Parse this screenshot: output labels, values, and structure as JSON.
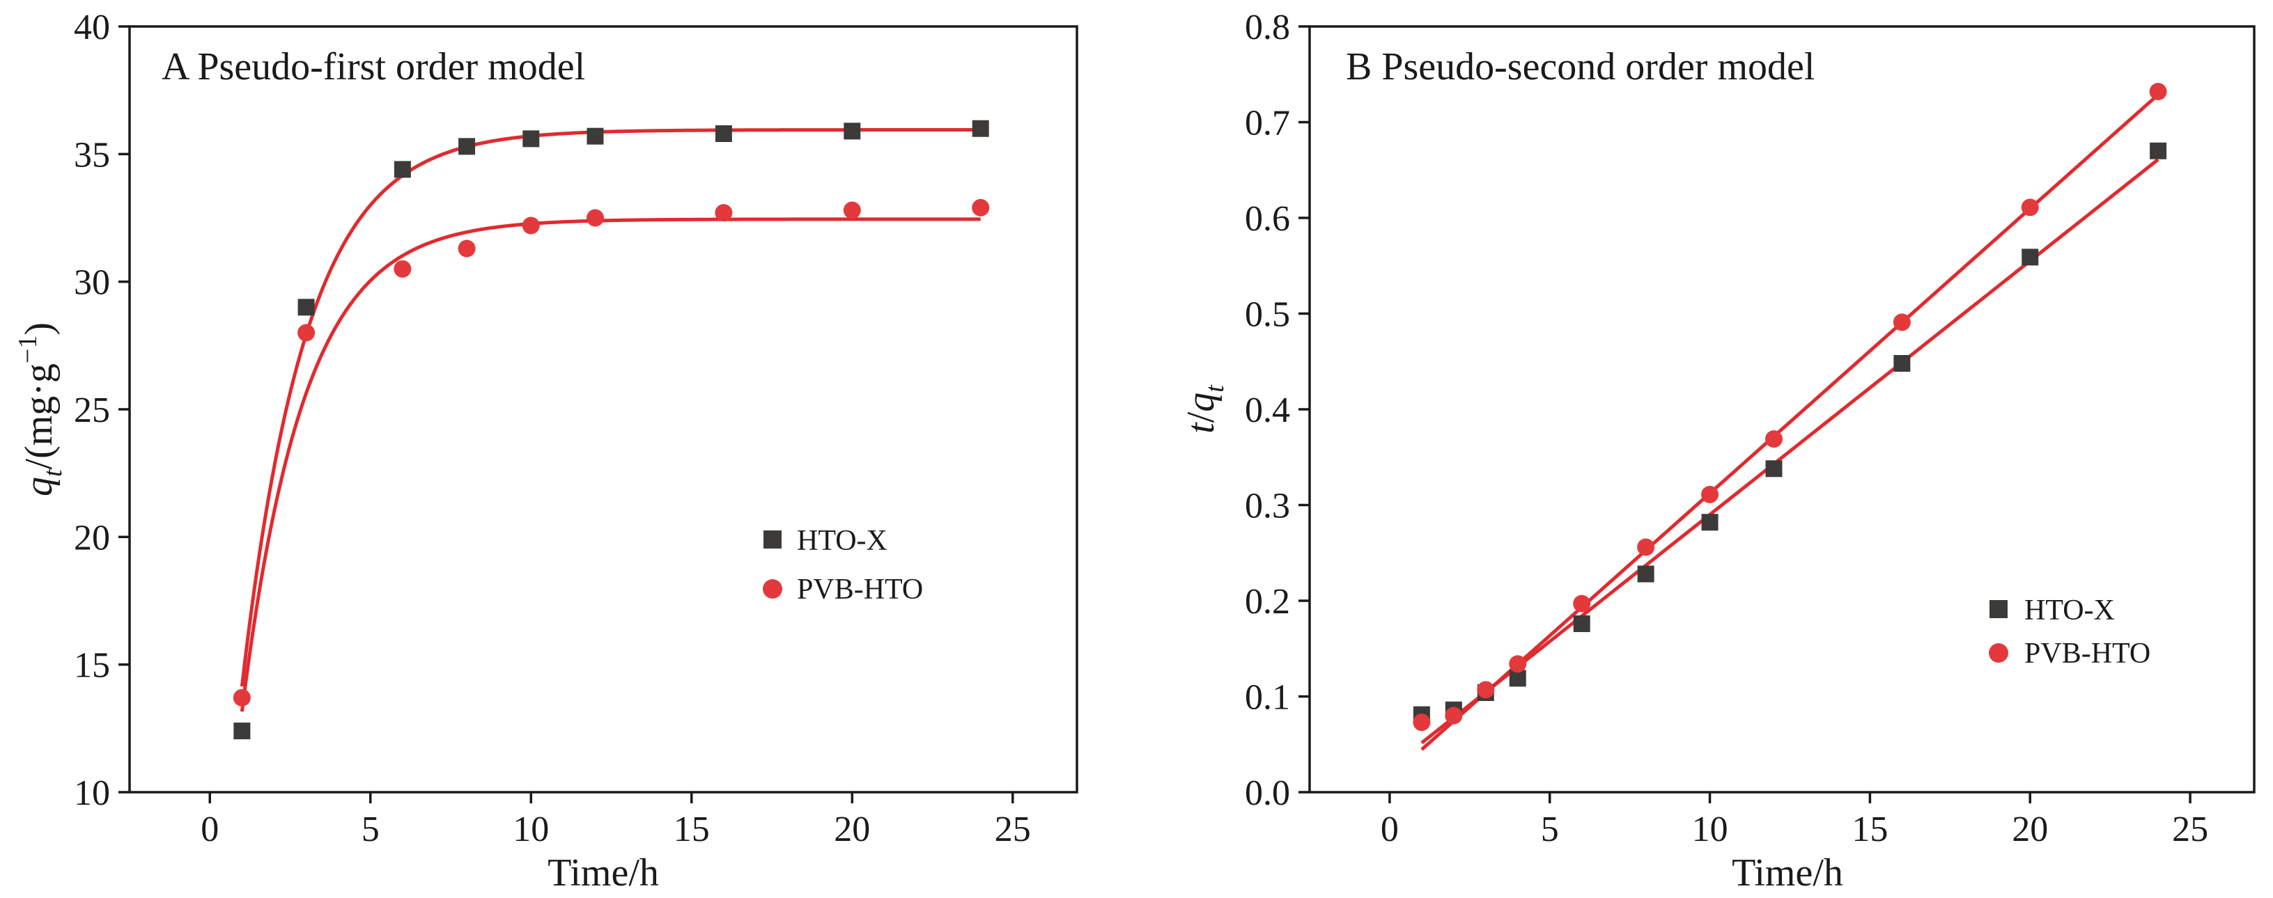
{
  "colors": {
    "square": "#3d3b39",
    "circle": "#e4393c",
    "fit": "#e02b2f",
    "frame": "#1a1a1a"
  },
  "chart_data": [
    {
      "type": "scatter",
      "title": "A Pseudo-first order model",
      "xlabel": "Time/h",
      "ylabel": {
        "q": "q",
        "sub": "t",
        "rest": "/(mg·g",
        "sup": "−1",
        "close": ")"
      },
      "xlim": [
        -2.5,
        27
      ],
      "ylim": [
        10,
        40
      ],
      "xticks": [
        0,
        5,
        10,
        15,
        20,
        25
      ],
      "yticks": [
        10,
        15,
        20,
        25,
        30,
        35,
        40
      ],
      "x_tick_labels": [
        "0",
        "5",
        "10",
        "15",
        "20",
        "25"
      ],
      "y_tick_labels": [
        "10",
        "15",
        "20",
        "25",
        "30",
        "35",
        "40"
      ],
      "legend_position": "center-right",
      "series": [
        {
          "name": "HTO-X",
          "marker": "square",
          "x": [
            1,
            3,
            6,
            8,
            10,
            12,
            16,
            20,
            24
          ],
          "y": [
            12.4,
            29.0,
            34.4,
            35.3,
            35.6,
            35.7,
            35.8,
            35.9,
            36.0
          ],
          "fit": {
            "model": "pseudo-first-order",
            "qe": 35.95,
            "k": 0.5,
            "x_range": [
              1,
              24
            ]
          }
        },
        {
          "name": "PVB-HTO",
          "marker": "circle",
          "x": [
            1,
            3,
            6,
            8,
            10,
            12,
            16,
            20,
            24
          ],
          "y": [
            13.7,
            28.0,
            30.5,
            31.3,
            32.2,
            32.5,
            32.7,
            32.8,
            32.9
          ],
          "fit": {
            "model": "pseudo-first-order",
            "qe": 32.45,
            "k": 0.52,
            "x_range": [
              1,
              24
            ]
          }
        }
      ]
    },
    {
      "type": "scatter",
      "title": "B Pseudo-second order model",
      "xlabel": "Time/h",
      "ylabel": {
        "t": "t",
        "slash": "/",
        "q": "q",
        "sub": "t"
      },
      "xlim": [
        -2.5,
        27
      ],
      "ylim": [
        0,
        0.8
      ],
      "xticks": [
        0,
        5,
        10,
        15,
        20,
        25
      ],
      "yticks": [
        0.0,
        0.1,
        0.2,
        0.3,
        0.4,
        0.5,
        0.6,
        0.7,
        0.8
      ],
      "x_tick_labels": [
        "0",
        "5",
        "10",
        "15",
        "20",
        "25"
      ],
      "y_tick_labels": [
        "0.0",
        "0.1",
        "0.2",
        "0.3",
        "0.4",
        "0.5",
        "0.6",
        "0.7",
        "0.8"
      ],
      "legend_position": "lower-right",
      "series": [
        {
          "name": "HTO-X",
          "marker": "square",
          "x": [
            1,
            2,
            3,
            4,
            6,
            8,
            10,
            12,
            16,
            20,
            24
          ],
          "y": [
            0.081,
            0.086,
            0.104,
            0.119,
            0.176,
            0.228,
            0.282,
            0.338,
            0.448,
            0.559,
            0.67
          ],
          "fit": {
            "model": "linear",
            "slope": 0.0265,
            "intercept": 0.025,
            "x_range": [
              1,
              24
            ]
          }
        },
        {
          "name": "PVB-HTO",
          "marker": "circle",
          "x": [
            1,
            2,
            3,
            4,
            6,
            8,
            10,
            12,
            16,
            20,
            24
          ],
          "y": [
            0.073,
            0.08,
            0.107,
            0.134,
            0.197,
            0.256,
            0.311,
            0.369,
            0.491,
            0.611,
            0.732
          ],
          "fit": {
            "model": "linear",
            "slope": 0.02975,
            "intercept": 0.01475,
            "x_range": [
              1,
              24
            ]
          }
        }
      ]
    }
  ]
}
